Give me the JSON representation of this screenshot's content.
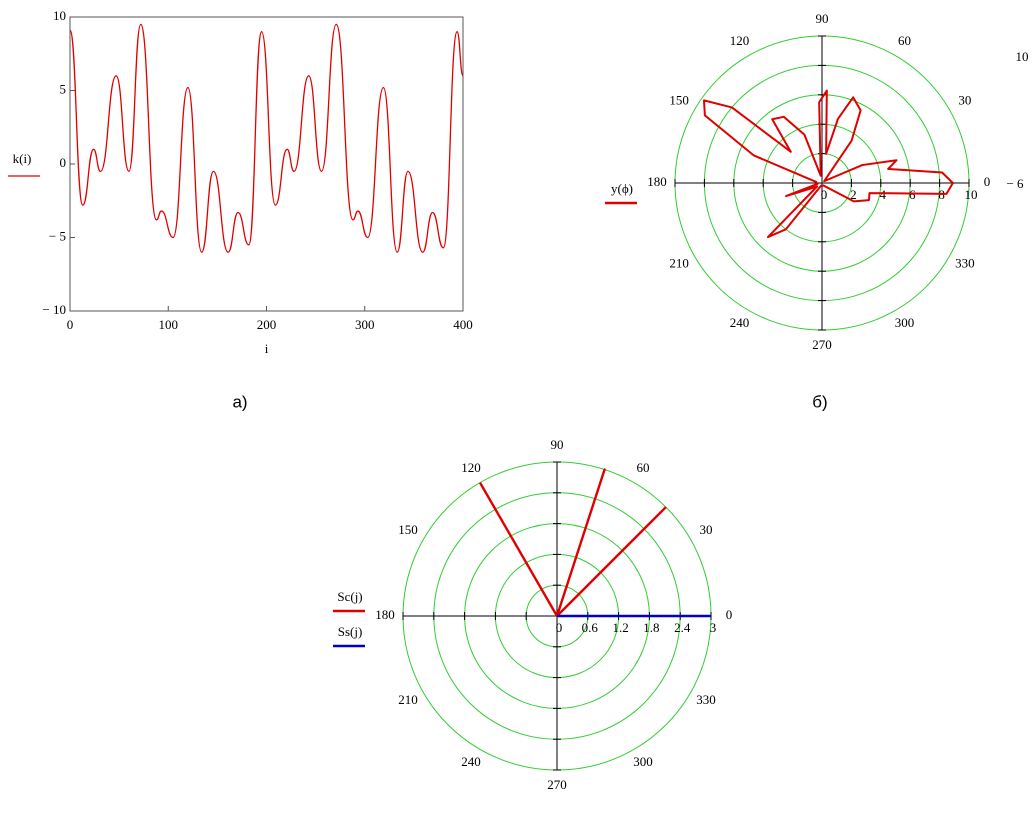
{
  "chart_data": [
    {
      "type": "line",
      "caption": "а)",
      "xlabel": "i",
      "legend": [
        "k(i)"
      ],
      "color": "#e00000",
      "x": [
        0,
        13,
        24,
        31,
        47,
        60,
        72,
        88,
        93,
        105,
        120,
        134,
        146,
        161,
        171,
        182,
        195,
        209,
        221,
        228,
        243,
        256,
        271,
        288,
        293,
        303,
        319,
        333,
        344,
        359,
        369,
        380,
        394,
        400
      ],
      "values": [
        9.1,
        -2.8,
        1,
        -0.5,
        6,
        -0.5,
        9.5,
        -3.8,
        -3.2,
        -5,
        5.2,
        -6,
        -0.5,
        -6,
        -3.3,
        -5.5,
        9,
        -2.8,
        1,
        -0.5,
        6,
        -0.5,
        9.5,
        -3.8,
        -3.2,
        -5,
        5.2,
        -6,
        -0.5,
        -6,
        -3.3,
        -5.7,
        9,
        6
      ],
      "xlim": [
        0,
        400
      ],
      "xticks": [
        0,
        100,
        200,
        300,
        400
      ],
      "ylim": [
        -10,
        10
      ],
      "yticks": [
        {
          "value": -10,
          "label": "− 10"
        },
        {
          "value": -5,
          "label": "− 5"
        },
        0,
        5,
        10
      ]
    },
    {
      "type": "polar",
      "caption": "б)",
      "annotations": [
        "10",
        "− 6"
      ],
      "series": [
        {
          "name": "y(ϕ)",
          "color": "#e00000",
          "x": [
            0,
            5,
            12,
            17,
            24,
            40,
            55,
            62,
            70,
            76,
            82,
            87,
            92,
            100,
            110,
            120,
            128,
            135,
            140,
            145,
            150,
            158,
            170,
            190,
            200,
            205,
            215,
            225,
            232,
            250,
            300,
            330,
            340,
            348,
            355,
            360
          ],
          "values": [
            8.9,
            8.2,
            4.6,
            5.3,
            3,
            0.2,
            3.5,
            5.6,
            6.2,
            4.5,
            2,
            6.3,
            5.5,
            0.5,
            3.5,
            5.2,
            5.5,
            3,
            8,
            9.8,
            9.2,
            5,
            0.4,
            0.3,
            2.6,
            1,
            0.4,
            5.2,
            4,
            0.2,
            0.2,
            2.5,
            3.4,
            3.3,
            8.5,
            8.9
          ]
        }
      ],
      "rlim": [
        0,
        10
      ],
      "rticks": [
        0,
        2,
        4,
        6,
        8,
        10
      ],
      "angle_ticks": [
        0,
        30,
        60,
        90,
        120,
        150,
        180,
        210,
        240,
        270,
        300,
        330
      ],
      "grid_color": "#33cc33"
    },
    {
      "type": "polar",
      "series": [
        {
          "name": "Sc(j)",
          "color": "#e00000",
          "x": [
            120,
            0,
            72,
            0,
            45
          ],
          "values": [
            3,
            0,
            3,
            0,
            3
          ]
        },
        {
          "name": "Ss(j)",
          "color": "#0000cc",
          "x": [
            0,
            0
          ],
          "values": [
            0,
            3
          ]
        }
      ],
      "rlim": [
        0,
        3
      ],
      "rticks": [
        0,
        0.6,
        1.2,
        1.8,
        2.4,
        3
      ],
      "angle_ticks": [
        0,
        30,
        60,
        90,
        120,
        150,
        180,
        210,
        240,
        270,
        300,
        330
      ],
      "grid_color": "#33cc33"
    }
  ]
}
